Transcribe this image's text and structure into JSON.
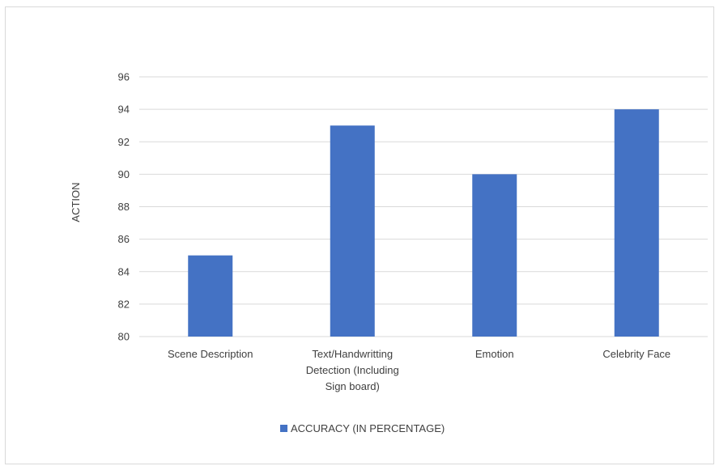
{
  "chart_data": {
    "type": "bar",
    "title": "",
    "xlabel": "",
    "ylabel": "ACTION",
    "ylim": [
      80,
      96
    ],
    "y_ticks": [
      80,
      82,
      84,
      86,
      88,
      90,
      92,
      94,
      96
    ],
    "grid": true,
    "legend_position": "bottom",
    "categories": [
      [
        "Scene Description"
      ],
      [
        "Text/Handwritting",
        "Detection (Including",
        "Sign board)"
      ],
      [
        "Emotion"
      ],
      [
        "Celebrity Face"
      ]
    ],
    "series": [
      {
        "name": "ACCURACY (IN PERCENTAGE)",
        "color": "#4472c4",
        "values": [
          85,
          93,
          90,
          94
        ]
      }
    ]
  }
}
